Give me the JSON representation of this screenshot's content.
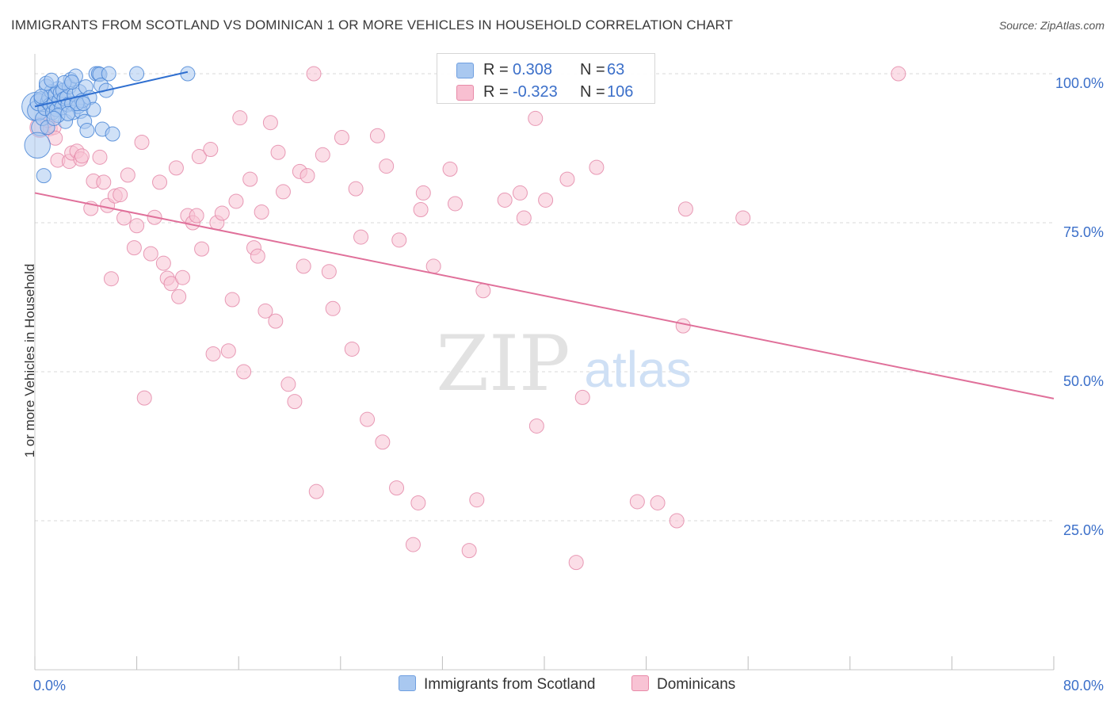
{
  "title": "IMMIGRANTS FROM SCOTLAND VS DOMINICAN 1 OR MORE VEHICLES IN HOUSEHOLD CORRELATION CHART",
  "source": "Source: ZipAtlas.com",
  "watermark": {
    "zip": "ZIP",
    "atlas": "atlas"
  },
  "legend_top": {
    "rows": [
      {
        "r_label": "R =",
        "r_value": "0.308",
        "n_label": "N =",
        "n_value": "63",
        "color": "#a9c8f0",
        "border": "#6f9fe0"
      },
      {
        "r_label": "R =",
        "r_value": "-0.323",
        "n_label": "N =",
        "n_value": "106",
        "color": "#f8bfd1",
        "border": "#e88aa8"
      }
    ]
  },
  "legend_bottom": {
    "scotland": "Immigrants from Scotland",
    "dominicans": "Dominicans"
  },
  "colors": {
    "scotland_fill": "#a9c8f0",
    "scotland_stroke": "#4a86d6",
    "scotland_line": "#2f6fd0",
    "dominican_fill": "#f8c3d4",
    "dominican_stroke": "#e48aa9",
    "dominican_line": "#e0709a",
    "tick_label": "#3b6fc9",
    "grid": "#d9d9d9"
  },
  "chart_data": {
    "type": "scatter",
    "title": "IMMIGRANTS FROM SCOTLAND VS DOMINICAN 1 OR MORE VEHICLES IN HOUSEHOLD CORRELATION CHART",
    "xlabel": "",
    "ylabel": "1 or more Vehicles in Household",
    "xlim": [
      0,
      80
    ],
    "ylim": [
      0,
      102
    ],
    "x_tick_labels": [
      "0.0%",
      "80.0%"
    ],
    "y_ticks": [
      25,
      50,
      75,
      100
    ],
    "y_tick_labels": [
      "25.0%",
      "50.0%",
      "75.0%",
      "100.0%"
    ],
    "grid": true,
    "series": [
      {
        "name": "Immigrants from Scotland",
        "trend": {
          "x": [
            0,
            12
          ],
          "y": [
            94.5,
            100.3
          ]
        },
        "points": [
          [
            0.1,
            94.5,
            2
          ],
          [
            0.2,
            93.8,
            1.4
          ],
          [
            0.3,
            95.2,
            1.2
          ],
          [
            0.4,
            91.0,
            1.2
          ],
          [
            0.5,
            95.8,
            1
          ],
          [
            0.6,
            92.5,
            1
          ],
          [
            0.7,
            82.9,
            1
          ],
          [
            0.8,
            94.2,
            1
          ],
          [
            0.9,
            97.9,
            1
          ],
          [
            1.0,
            95.3,
            1
          ],
          [
            1.1,
            96.0,
            1
          ],
          [
            1.2,
            94.8,
            1
          ],
          [
            1.3,
            97.0,
            1
          ],
          [
            1.4,
            93.5,
            1
          ],
          [
            1.5,
            95.0,
            1
          ],
          [
            1.6,
            96.5,
            1
          ],
          [
            1.7,
            94.0,
            1
          ],
          [
            1.8,
            97.5,
            1
          ],
          [
            1.9,
            95.5,
            1
          ],
          [
            2.0,
            96.8,
            1
          ],
          [
            2.1,
            94.3,
            1
          ],
          [
            2.2,
            97.2,
            1
          ],
          [
            2.3,
            95.8,
            1
          ],
          [
            2.4,
            92.0,
            1
          ],
          [
            2.5,
            96.0,
            1
          ],
          [
            2.6,
            94.8,
            1
          ],
          [
            2.7,
            97.8,
            1
          ],
          [
            2.8,
            99.0,
            1
          ],
          [
            2.9,
            95.0,
            1
          ],
          [
            3.0,
            93.5,
            1
          ],
          [
            3.1,
            96.5,
            1
          ],
          [
            3.2,
            99.6,
            1
          ],
          [
            3.4,
            94.5,
            1
          ],
          [
            3.5,
            97.0,
            1
          ],
          [
            3.6,
            93.7,
            1
          ],
          [
            3.7,
            95.5,
            1
          ],
          [
            3.9,
            92.0,
            1
          ],
          [
            4.0,
            97.8,
            1
          ],
          [
            4.1,
            90.5,
            1
          ],
          [
            4.3,
            96.0,
            1
          ],
          [
            4.6,
            94.0,
            1
          ],
          [
            4.8,
            100.0,
            1
          ],
          [
            5.0,
            100.0,
            1
          ],
          [
            5.1,
            99.9,
            1
          ],
          [
            5.2,
            98.1,
            1
          ],
          [
            5.3,
            90.7,
            1
          ],
          [
            5.6,
            97.2,
            1
          ],
          [
            5.8,
            100.0,
            1
          ],
          [
            6.1,
            89.9,
            1
          ],
          [
            8.0,
            100.0,
            1
          ],
          [
            0.2,
            88.0,
            1.8
          ],
          [
            1.0,
            91.0,
            1
          ],
          [
            1.8,
            93.0,
            1
          ],
          [
            2.3,
            98.5,
            1
          ],
          [
            3.3,
            95.0,
            1
          ],
          [
            0.9,
            98.4,
            1
          ],
          [
            1.5,
            92.5,
            1
          ],
          [
            2.6,
            93.3,
            1
          ],
          [
            3.8,
            95.0,
            1
          ],
          [
            12.0,
            100.0,
            1
          ],
          [
            0.5,
            96.2,
            1
          ],
          [
            1.3,
            98.9,
            1
          ],
          [
            2.9,
            98.6,
            1
          ]
        ]
      },
      {
        "name": "Dominicans",
        "trend": {
          "x": [
            0,
            80
          ],
          "y": [
            80.0,
            45.5
          ]
        },
        "points": [
          [
            0.4,
            91.0,
            1.4
          ],
          [
            0.8,
            94.3,
            1
          ],
          [
            1.2,
            90.8,
            1
          ],
          [
            1.5,
            91.0,
            1
          ],
          [
            1.6,
            89.2,
            1
          ],
          [
            1.8,
            85.5,
            1
          ],
          [
            2.7,
            85.3,
            1
          ],
          [
            2.9,
            86.7,
            1
          ],
          [
            3.3,
            87.0,
            1
          ],
          [
            3.6,
            85.7,
            1
          ],
          [
            3.7,
            86.2,
            1
          ],
          [
            4.4,
            77.4,
            1
          ],
          [
            4.6,
            82.0,
            1
          ],
          [
            5.1,
            86.0,
            1
          ],
          [
            5.4,
            81.8,
            1
          ],
          [
            5.7,
            77.9,
            1
          ],
          [
            6.0,
            65.6,
            1
          ],
          [
            6.3,
            79.5,
            1
          ],
          [
            6.7,
            79.7,
            1
          ],
          [
            7.0,
            75.8,
            1
          ],
          [
            7.3,
            83.0,
            1
          ],
          [
            7.8,
            70.8,
            1
          ],
          [
            8.0,
            74.5,
            1
          ],
          [
            8.4,
            88.5,
            1
          ],
          [
            8.6,
            45.6,
            1
          ],
          [
            9.1,
            69.8,
            1
          ],
          [
            9.4,
            75.9,
            1
          ],
          [
            9.8,
            81.8,
            1
          ],
          [
            10.1,
            68.2,
            1
          ],
          [
            10.4,
            65.7,
            1
          ],
          [
            10.7,
            64.8,
            1
          ],
          [
            11.1,
            84.2,
            1
          ],
          [
            11.3,
            62.6,
            1
          ],
          [
            11.6,
            65.8,
            1
          ],
          [
            12.0,
            76.2,
            1
          ],
          [
            12.4,
            75.0,
            1
          ],
          [
            12.7,
            76.2,
            1
          ],
          [
            12.9,
            86.1,
            1
          ],
          [
            13.1,
            70.6,
            1
          ],
          [
            13.8,
            87.3,
            1
          ],
          [
            14.0,
            53.0,
            1
          ],
          [
            14.3,
            75.0,
            1
          ],
          [
            14.7,
            76.6,
            1
          ],
          [
            15.2,
            53.5,
            1
          ],
          [
            15.5,
            62.1,
            1
          ],
          [
            15.8,
            78.6,
            1
          ],
          [
            16.1,
            92.6,
            1
          ],
          [
            16.4,
            50.0,
            1
          ],
          [
            16.9,
            82.3,
            1
          ],
          [
            17.2,
            70.8,
            1
          ],
          [
            17.5,
            69.4,
            1
          ],
          [
            17.8,
            76.8,
            1
          ],
          [
            18.1,
            60.2,
            1
          ],
          [
            18.5,
            91.8,
            1
          ],
          [
            18.9,
            58.5,
            1
          ],
          [
            19.1,
            86.8,
            1
          ],
          [
            19.5,
            80.2,
            1
          ],
          [
            19.9,
            47.9,
            1
          ],
          [
            20.4,
            45.0,
            1
          ],
          [
            20.8,
            83.6,
            1
          ],
          [
            21.1,
            67.7,
            1
          ],
          [
            21.4,
            82.9,
            1
          ],
          [
            21.9,
            100.0,
            1
          ],
          [
            22.1,
            29.9,
            1
          ],
          [
            22.6,
            86.4,
            1
          ],
          [
            23.1,
            66.8,
            1
          ],
          [
            23.4,
            60.6,
            1
          ],
          [
            24.1,
            89.3,
            1
          ],
          [
            24.9,
            53.8,
            1
          ],
          [
            25.2,
            80.7,
            1
          ],
          [
            25.6,
            72.6,
            1
          ],
          [
            26.1,
            42.0,
            1
          ],
          [
            26.9,
            89.6,
            1
          ],
          [
            27.3,
            38.2,
            1
          ],
          [
            27.6,
            84.5,
            1
          ],
          [
            28.4,
            30.5,
            1
          ],
          [
            28.6,
            72.1,
            1
          ],
          [
            29.7,
            21.0,
            1
          ],
          [
            30.1,
            28.0,
            1
          ],
          [
            30.3,
            77.2,
            1
          ],
          [
            30.5,
            80.0,
            1
          ],
          [
            31.3,
            67.7,
            1
          ],
          [
            32.6,
            84.0,
            1
          ],
          [
            33.0,
            78.2,
            1
          ],
          [
            33.5,
            100.0,
            1
          ],
          [
            34.1,
            20.0,
            1
          ],
          [
            34.7,
            28.5,
            1
          ],
          [
            35.2,
            63.6,
            1
          ],
          [
            36.9,
            78.8,
            1
          ],
          [
            38.1,
            80.0,
            1
          ],
          [
            38.4,
            75.8,
            1
          ],
          [
            39.3,
            92.5,
            1
          ],
          [
            39.4,
            40.9,
            1
          ],
          [
            40.1,
            78.8,
            1
          ],
          [
            41.8,
            82.3,
            1
          ],
          [
            42.5,
            18.0,
            1
          ],
          [
            43.0,
            45.7,
            1
          ],
          [
            44.1,
            84.3,
            1
          ],
          [
            47.3,
            28.2,
            1
          ],
          [
            48.9,
            28.0,
            1
          ],
          [
            50.4,
            25.0,
            1
          ],
          [
            50.9,
            57.7,
            1
          ],
          [
            51.1,
            77.3,
            1
          ],
          [
            55.6,
            75.8,
            1
          ],
          [
            67.8,
            100.0,
            1
          ],
          [
            1.0,
            92.2,
            1
          ]
        ]
      }
    ]
  }
}
